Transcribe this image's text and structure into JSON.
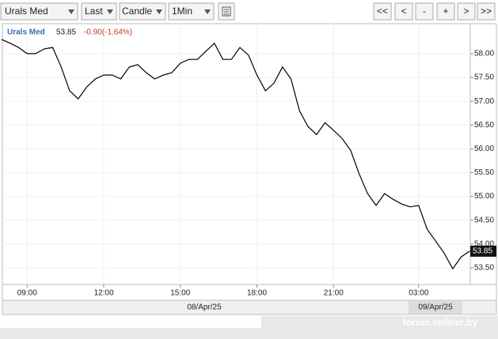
{
  "toolbar": {
    "price_type": "Last",
    "chart_style": "Candle",
    "interval": "1Min",
    "nav_buttons": [
      "<<",
      "<",
      "-",
      "+",
      ">",
      ">>"
    ]
  },
  "watermark": "forum.onliner.by",
  "chart_data": {
    "type": "line",
    "categories": [
      null,
      null,
      null,
      "09:00",
      null,
      null,
      null,
      null,
      null,
      null,
      null,
      null,
      "12:00",
      null,
      null,
      null,
      null,
      null,
      null,
      null,
      null,
      "15:00",
      null,
      null,
      null,
      null,
      null,
      null,
      null,
      null,
      "18:00",
      null,
      null,
      null,
      null,
      null,
      null,
      null,
      null,
      "21:00",
      null,
      null,
      null,
      null,
      null,
      null,
      null,
      null,
      null,
      "03:00",
      null,
      null,
      null,
      null,
      null,
      null
    ],
    "series": [
      {
        "name": "Urals Med",
        "color": "#000000",
        "values": [
          58.3,
          58.22,
          58.13,
          58.0,
          58.0,
          58.1,
          58.13,
          57.72,
          57.22,
          57.05,
          57.3,
          57.47,
          57.55,
          57.55,
          57.47,
          57.72,
          57.77,
          57.6,
          57.47,
          57.55,
          57.6,
          57.8,
          57.88,
          57.88,
          58.05,
          58.22,
          57.88,
          57.88,
          58.13,
          57.97,
          57.55,
          57.22,
          57.38,
          57.72,
          57.47,
          56.8,
          56.47,
          56.3,
          56.55,
          56.39,
          56.22,
          55.97,
          55.48,
          55.06,
          54.81,
          55.06,
          54.94,
          54.84,
          54.78,
          54.81,
          54.31,
          54.06,
          53.81,
          53.48,
          53.73,
          53.85
        ]
      }
    ],
    "last_value": 53.85,
    "change": "-0.90(-1.64%)",
    "date_labels": [
      "08/Apr/25",
      "09/Apr/25"
    ],
    "ylim": [
      53.15,
      58.63
    ],
    "yticks": [
      {
        "value": 53.5,
        "label": "53.50"
      },
      {
        "value": 54,
        "label": "54.00"
      },
      {
        "value": 54.5,
        "label": "54.50"
      },
      {
        "value": 55,
        "label": "55.00"
      },
      {
        "value": 55.5,
        "label": "55.50"
      },
      {
        "value": 56,
        "label": "56.00"
      },
      {
        "value": 56.5,
        "label": "56.50"
      },
      {
        "value": 57,
        "label": "57.00"
      },
      {
        "value": 57.5,
        "label": "57.50"
      },
      {
        "value": 58,
        "label": "58.00"
      }
    ],
    "grid": true
  }
}
